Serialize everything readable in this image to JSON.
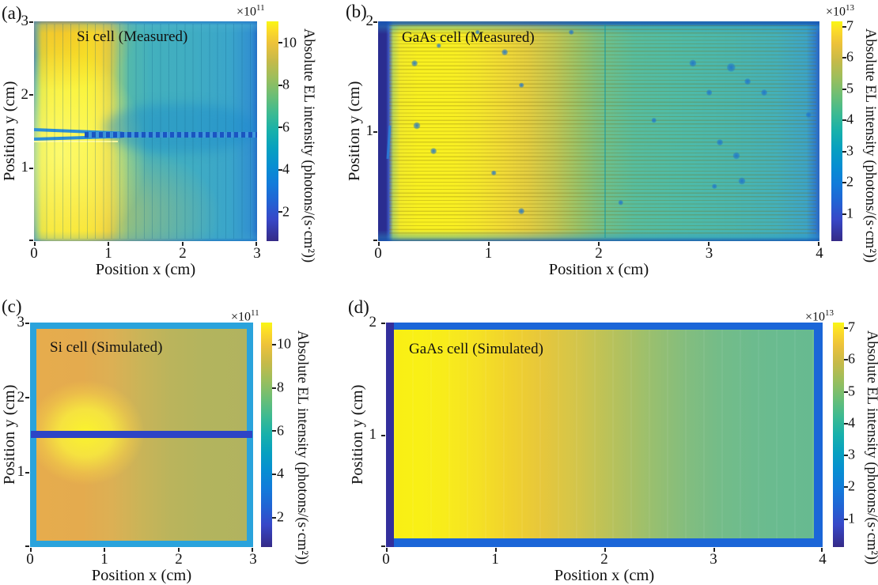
{
  "panels": [
    {
      "tag": "(a)",
      "title": "Si cell (Measured)",
      "x_label": "Position x (cm)",
      "y_label": "Position y (cm)",
      "x_ticks": [
        "0",
        "1",
        "2",
        "3"
      ],
      "y_ticks": [
        "3",
        "2",
        "1"
      ],
      "colorbar": {
        "exponent_base": "×10",
        "exponent": "11",
        "ticks": [
          "10",
          "8",
          "6",
          "4",
          "2"
        ],
        "label": "Absolute EL intensity (photons/(s·cm²))"
      }
    },
    {
      "tag": "(b)",
      "title": "GaAs cell (Measured)",
      "x_label": "Position x (cm)",
      "y_label": "Position y (cm)",
      "x_ticks": [
        "0",
        "1",
        "2",
        "3",
        "4"
      ],
      "y_ticks": [
        "2",
        "1"
      ],
      "colorbar": {
        "exponent_base": "×10",
        "exponent": "13",
        "ticks": [
          "7",
          "6",
          "5",
          "4",
          "3",
          "2",
          "1"
        ],
        "label": "Absolute EL intensity (photons/(s·cm²))"
      }
    },
    {
      "tag": "(c)",
      "title": "Si cell (Simulated)",
      "x_label": "Position x (cm)",
      "y_label": "Position y (cm)",
      "x_ticks": [
        "0",
        "1",
        "2",
        "3"
      ],
      "y_ticks": [
        "3",
        "2",
        "1"
      ],
      "colorbar": {
        "exponent_base": "×10",
        "exponent": "11",
        "ticks": [
          "10",
          "8",
          "6",
          "4",
          "2"
        ],
        "label": "Absolute EL intensity (photons/(s·cm²))"
      }
    },
    {
      "tag": "(d)",
      "title": "GaAs cell (Simulated)",
      "x_label": "Position x (cm)",
      "y_label": "Position y (cm)",
      "x_ticks": [
        "0",
        "1",
        "2",
        "3",
        "4"
      ],
      "y_ticks": [
        "2",
        "1"
      ],
      "colorbar": {
        "exponent_base": "×10",
        "exponent": "13",
        "ticks": [
          "7",
          "6",
          "5",
          "4",
          "3",
          "2",
          "1"
        ],
        "label": "Absolute EL intensity (photons/(s·cm²))"
      }
    }
  ],
  "colors": {
    "colormap": "parula",
    "parula_bottom": "#352a87",
    "parula_top": "#f8f715",
    "a_yellow_core": "#f8ee2e",
    "a_teal_right": "#3facc2",
    "a_busbar_blue": "#1f72d2",
    "b_navy_busbar": "#2a2d90",
    "b_yellow_left": "#f8ef22",
    "b_teal_right": "#4ab6ae",
    "c_frame_cyan": "#2aa3dc",
    "c_interior_left": "#e4ab4e",
    "c_interior_right": "#b2b45c",
    "c_glow_yellow": "#faf32d",
    "c_stripe_blue": "#2d44c6",
    "d_navy_bar": "#332f9c",
    "d_frame_blue": "#1b66d8",
    "d_left_yellow": "#f9ef14",
    "d_right_green": "#67ba90"
  },
  "chart_data": [
    {
      "type": "heatmap",
      "panel": "a",
      "title": "Si cell (Measured)",
      "xlabel": "Position x (cm)",
      "ylabel": "Position y (cm)",
      "x_range": [
        0,
        3
      ],
      "y_range": [
        0,
        3
      ],
      "x_ticks": [
        0,
        1,
        2,
        3
      ],
      "y_ticks": [
        0,
        1,
        2,
        3
      ],
      "colormap": "parula",
      "colorbar": {
        "label": "Absolute EL intensity (photons/(s·cm²))",
        "scale_exponent": 11,
        "ticks": [
          2,
          4,
          6,
          8,
          10
        ],
        "range": [
          0.6,
          11
        ]
      },
      "values_unit": "1e11 photons/(s·cm²)",
      "x_centers": [
        0.25,
        0.75,
        1.25,
        1.75,
        2.25,
        2.75
      ],
      "y_centers": [
        2.7,
        2.1,
        1.55,
        1.0,
        0.4
      ],
      "values": [
        [
          9.0,
          9.5,
          7.0,
          6.2,
          6.0,
          5.8
        ],
        [
          10.0,
          10.5,
          6.8,
          6.0,
          5.9,
          5.7
        ],
        [
          10.5,
          10.8,
          4.9,
          4.7,
          4.7,
          4.8
        ],
        [
          10.8,
          11.0,
          7.8,
          6.4,
          6.0,
          5.8
        ],
        [
          10.2,
          10.6,
          7.4,
          6.3,
          6.0,
          5.8
        ]
      ],
      "features": {
        "busbar": "horizontal dashed blue busbar at y≈1.55 cm from x≈0.75 to 3 cm",
        "wedge": "blue wedge-shaped defect from left edge converging at (0.75, 1.5) cm",
        "fingers": "~27 faint vertical finger gridlines, pitch ≈0.107 cm",
        "note": "bright yellow high-intensity region for x<0.9 cm, teal lower-intensity right side, darker band surrounding busbar"
      }
    },
    {
      "type": "heatmap",
      "panel": "b",
      "title": "GaAs cell (Measured)",
      "xlabel": "Position x (cm)",
      "ylabel": "Position y (cm)",
      "x_range": [
        0,
        4
      ],
      "y_range": [
        0,
        2
      ],
      "x_ticks": [
        0,
        1,
        2,
        3,
        4
      ],
      "y_ticks": [
        0,
        1,
        2
      ],
      "colormap": "parula",
      "colorbar": {
        "label": "Absolute EL intensity (photons/(s·cm²))",
        "scale_exponent": 13,
        "ticks": [
          1,
          2,
          3,
          4,
          5,
          6,
          7
        ],
        "range": [
          0.1,
          7.15
        ]
      },
      "values_unit": "1e13 photons/(s·cm²)",
      "x_centers": [
        0.05,
        0.5,
        1.0,
        1.5,
        2.0,
        2.5,
        3.0,
        3.5,
        3.95
      ],
      "y_centers": [
        1.7,
        1.0,
        0.3
      ],
      "values": [
        [
          0.8,
          6.6,
          6.3,
          5.6,
          4.7,
          4.1,
          3.7,
          3.5,
          3.0
        ],
        [
          0.8,
          6.9,
          6.6,
          5.8,
          4.8,
          4.2,
          3.8,
          3.5,
          3.0
        ],
        [
          0.8,
          6.7,
          6.4,
          5.7,
          4.7,
          4.1,
          3.7,
          3.4,
          3.0
        ]
      ],
      "features": {
        "busbar": "dark navy vertical busbar column at x<0.1 cm",
        "fingers": "dense horizontal finger lines, pitch ≈0.033 cm",
        "vertical_line": "faint teal vertical line at x≈2.05 cm",
        "streak": "short blue streak near left busbar around y≈0.9 cm",
        "defect_spots": [
          {
            "x": 0.33,
            "y": 1.62,
            "r": 3
          },
          {
            "x": 0.55,
            "y": 1.78,
            "r": 2.5
          },
          {
            "x": 0.9,
            "y": 1.9,
            "r": 2.5
          },
          {
            "x": 1.15,
            "y": 1.72,
            "r": 3
          },
          {
            "x": 1.3,
            "y": 1.42,
            "r": 2.5
          },
          {
            "x": 0.35,
            "y": 1.05,
            "r": 3.5
          },
          {
            "x": 0.5,
            "y": 0.82,
            "r": 3
          },
          {
            "x": 1.05,
            "y": 0.62,
            "r": 2.5
          },
          {
            "x": 1.3,
            "y": 0.27,
            "r": 3
          },
          {
            "x": 1.75,
            "y": 1.9,
            "r": 2.5
          },
          {
            "x": 2.2,
            "y": 0.35,
            "r": 2.5
          },
          {
            "x": 2.5,
            "y": 1.1,
            "r": 2.5
          },
          {
            "x": 2.85,
            "y": 1.62,
            "r": 3.5
          },
          {
            "x": 3.0,
            "y": 1.35,
            "r": 3
          },
          {
            "x": 3.2,
            "y": 1.58,
            "r": 4
          },
          {
            "x": 3.35,
            "y": 1.45,
            "r": 3
          },
          {
            "x": 3.1,
            "y": 0.9,
            "r": 3
          },
          {
            "x": 3.25,
            "y": 0.78,
            "r": 3.5
          },
          {
            "x": 3.3,
            "y": 0.55,
            "r": 3.5
          },
          {
            "x": 3.05,
            "y": 0.5,
            "r": 2.5
          },
          {
            "x": 3.5,
            "y": 1.35,
            "r": 3
          },
          {
            "x": 3.9,
            "y": 1.15,
            "r": 2.5
          }
        ]
      }
    },
    {
      "type": "heatmap",
      "panel": "c",
      "title": "Si cell (Simulated)",
      "xlabel": "Position x (cm)",
      "ylabel": "Position y (cm)",
      "x_range": [
        0,
        3
      ],
      "y_range": [
        0,
        3
      ],
      "x_ticks": [
        0,
        1,
        2,
        3
      ],
      "y_ticks": [
        0,
        1,
        2,
        3
      ],
      "colormap": "parula",
      "colorbar": {
        "label": "Absolute EL intensity (photons/(s·cm²))",
        "scale_exponent": 11,
        "ticks": [
          2,
          4,
          6,
          8,
          10
        ],
        "range": [
          0.6,
          11
        ]
      },
      "values_unit": "1e11 photons/(s·cm²)",
      "x_centers": [
        0.25,
        0.75,
        1.25,
        1.75,
        2.25,
        2.75
      ],
      "y_centers": [
        2.7,
        2.1,
        1.5,
        1.0,
        0.4
      ],
      "values": [
        [
          8.9,
          8.9,
          8.6,
          8.2,
          8.0,
          7.9
        ],
        [
          9.2,
          9.4,
          8.8,
          8.3,
          8.0,
          7.9
        ],
        [
          1.8,
          1.8,
          1.8,
          1.8,
          1.8,
          1.8
        ],
        [
          9.3,
          9.5,
          8.8,
          8.3,
          8.0,
          7.9
        ],
        [
          9.0,
          9.0,
          8.6,
          8.2,
          8.0,
          7.9
        ]
      ],
      "features": {
        "frame": "cyan border frame ≈0.08 cm wide around the cell, value ≈4",
        "busbar": "dark blue horizontal busbar stripe across full width at y=1.5 cm",
        "glow": "bright yellow high-intensity glow centered at (0.7, 1.5) cm, ≈10.6"
      }
    },
    {
      "type": "heatmap",
      "panel": "d",
      "title": "GaAs cell (Simulated)",
      "xlabel": "Position x (cm)",
      "ylabel": "Position y (cm)",
      "x_range": [
        0,
        4
      ],
      "y_range": [
        0,
        2
      ],
      "x_ticks": [
        0,
        1,
        2,
        3,
        4
      ],
      "y_ticks": [
        0,
        1,
        2
      ],
      "colormap": "parula",
      "colorbar": {
        "label": "Absolute EL intensity (photons/(s·cm²))",
        "scale_exponent": 13,
        "ticks": [
          1,
          2,
          3,
          4,
          5,
          6,
          7
        ],
        "range": [
          0.1,
          7.15
        ]
      },
      "values_unit": "1e13 photons/(s·cm²)",
      "x_centers": [
        0.3,
        0.8,
        1.3,
        1.8,
        2.3,
        2.8,
        3.3,
        3.7
      ],
      "y_centers": [
        1.0
      ],
      "values": [
        [
          7.0,
          6.6,
          6.0,
          5.4,
          4.9,
          4.6,
          4.4,
          4.3
        ]
      ],
      "features": {
        "busbar": "dark navy vertical busbar column at x<0.07 cm, ≈0.9",
        "frame": "blue frame along top, bottom and right edges, ≈1.6",
        "gradient": "intensity decreases smoothly from left (yellow) to right (green), uniform in y"
      }
    }
  ]
}
